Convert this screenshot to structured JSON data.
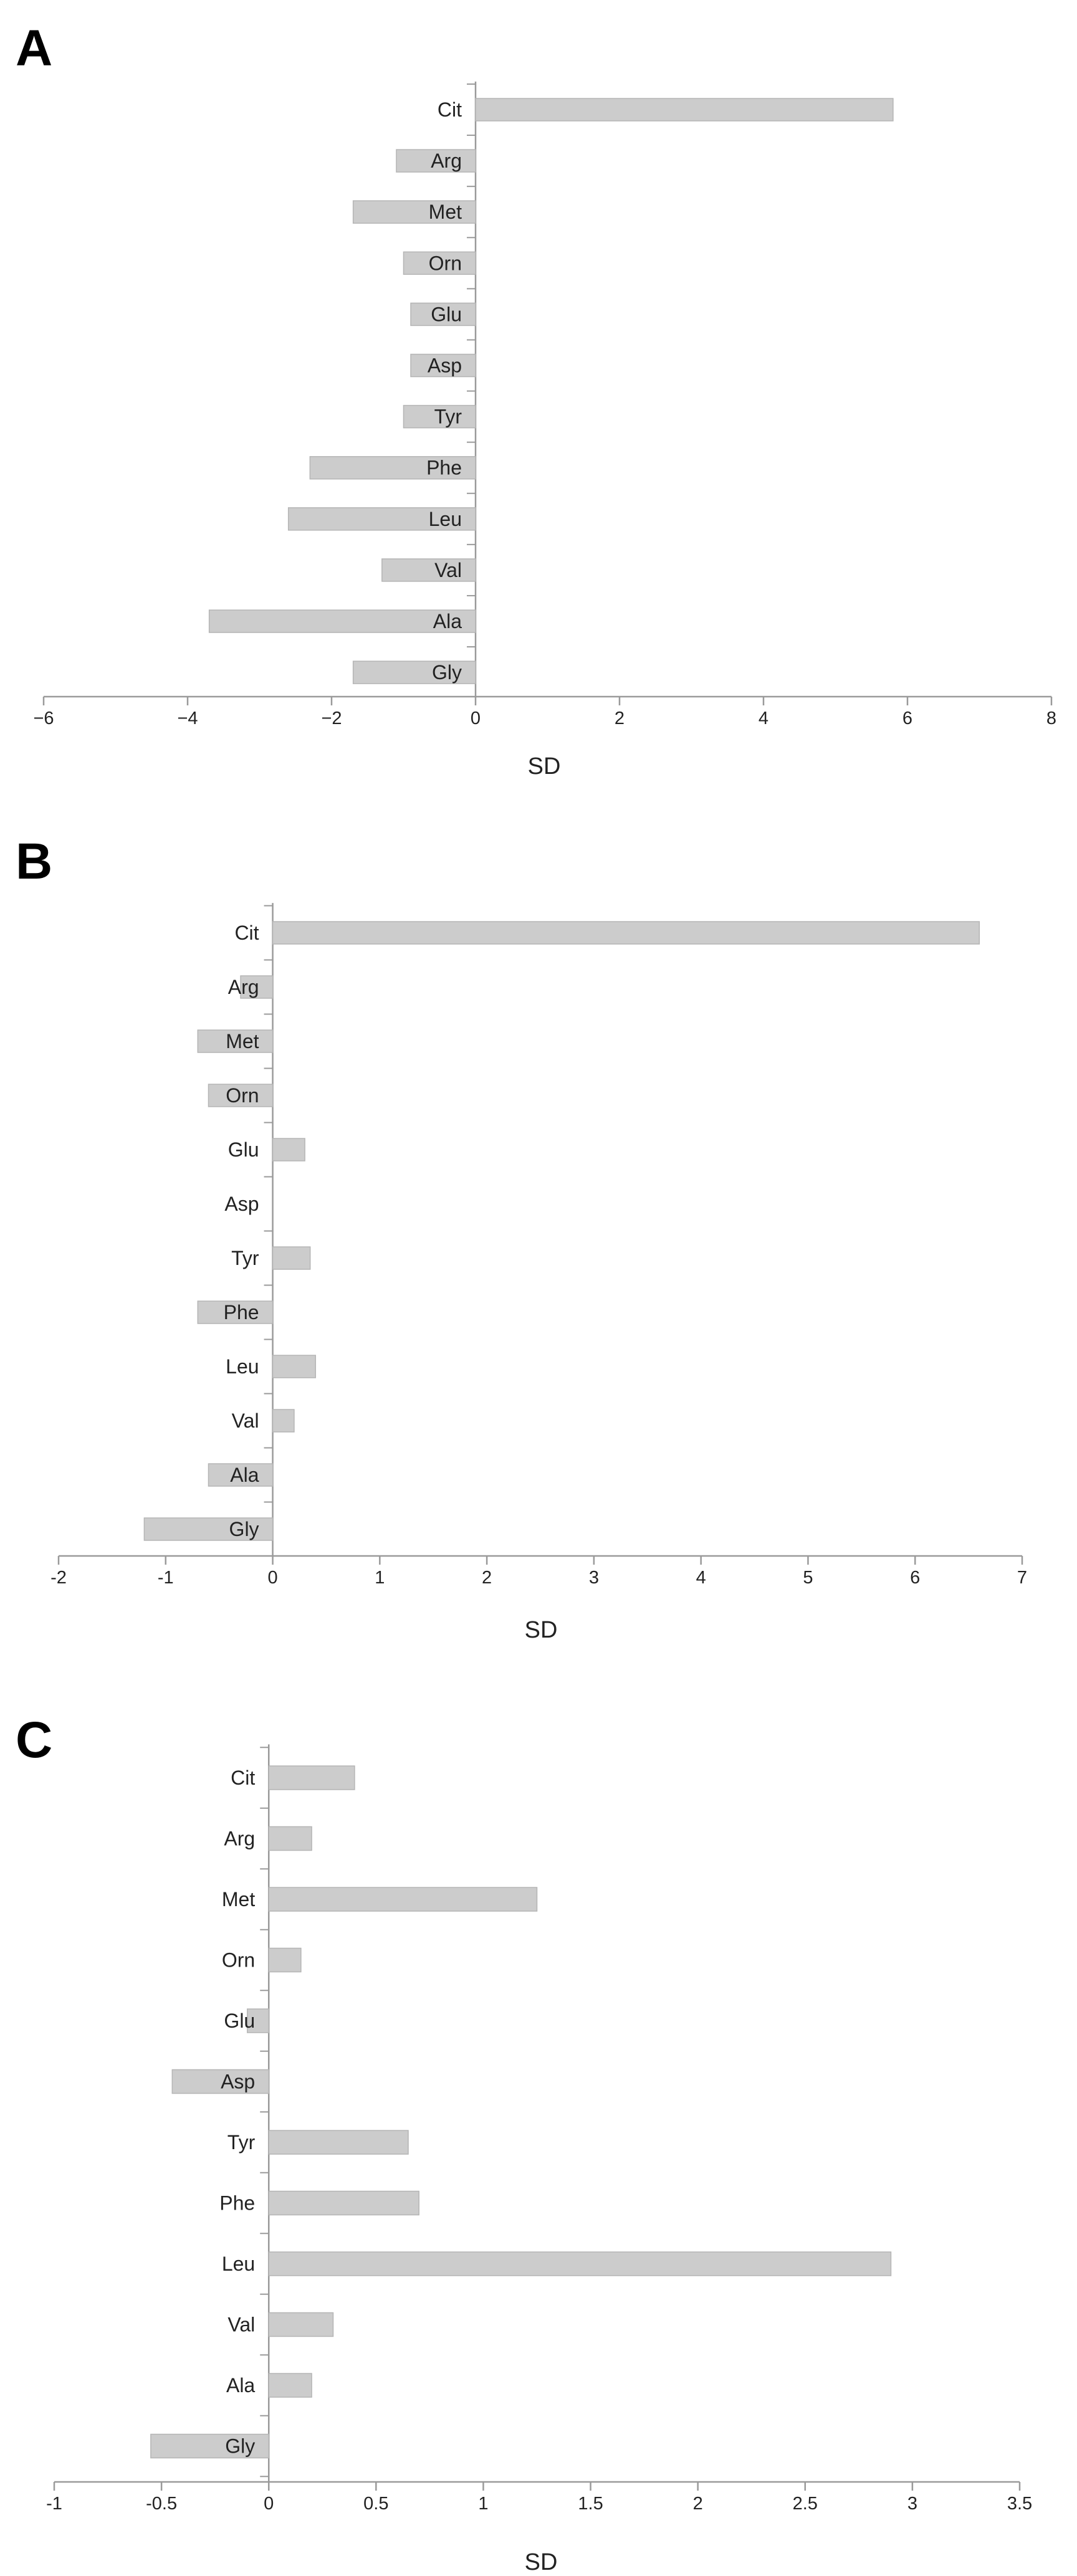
{
  "chart_data": [
    {
      "panel_label": "A",
      "type": "bar",
      "orientation": "horizontal",
      "categories": [
        "Cit",
        "Arg",
        "Met",
        "Orn",
        "Glu",
        "Asp",
        "Tyr",
        "Phe",
        "Leu",
        "Val",
        "Ala",
        "Gly"
      ],
      "values": [
        5.8,
        -1.1,
        -1.7,
        -1.0,
        -0.9,
        -0.9,
        -1.0,
        -2.3,
        -2.6,
        -1.3,
        -3.7,
        -1.7
      ],
      "xlabel": "SD",
      "xlim": [
        -6,
        8
      ],
      "xticks": [
        -6,
        -4,
        -2,
        0,
        2,
        4,
        6,
        8
      ],
      "xtick_labels": [
        "−6",
        "−4",
        "−2",
        "0",
        "2",
        "4",
        "6",
        "8"
      ],
      "bar_color": "#cccccc",
      "grid": false
    },
    {
      "panel_label": "B",
      "type": "bar",
      "orientation": "horizontal",
      "categories": [
        "Cit",
        "Arg",
        "Met",
        "Orn",
        "Glu",
        "Asp",
        "Tyr",
        "Phe",
        "Leu",
        "Val",
        "Ala",
        "Gly"
      ],
      "values": [
        6.6,
        -0.3,
        -0.7,
        -0.6,
        0.3,
        0.0,
        0.35,
        -0.7,
        0.4,
        0.2,
        -0.6,
        -1.2
      ],
      "xlabel": "SD",
      "xlim": [
        -2,
        7
      ],
      "xticks": [
        -2,
        -1,
        0,
        1,
        2,
        3,
        4,
        5,
        6,
        7
      ],
      "xtick_labels": [
        "-2",
        "-1",
        "0",
        "1",
        "2",
        "3",
        "4",
        "5",
        "6",
        "7"
      ],
      "bar_color": "#cccccc",
      "grid": false
    },
    {
      "panel_label": "C",
      "type": "bar",
      "orientation": "horizontal",
      "categories": [
        "Cit",
        "Arg",
        "Met",
        "Orn",
        "Glu",
        "Asp",
        "Tyr",
        "Phe",
        "Leu",
        "Val",
        "Ala",
        "Gly"
      ],
      "values": [
        0.4,
        0.2,
        1.25,
        0.15,
        -0.1,
        -0.45,
        0.65,
        0.7,
        2.9,
        0.3,
        0.2,
        -0.55
      ],
      "xlabel": "SD",
      "xlim": [
        -1,
        3.5
      ],
      "xticks": [
        -1,
        -0.5,
        0,
        0.5,
        1,
        1.5,
        2,
        2.5,
        3,
        3.5
      ],
      "xtick_labels": [
        "-1",
        "-0.5",
        "0",
        "0.5",
        "1",
        "1.5",
        "2",
        "2.5",
        "3",
        "3.5"
      ],
      "bar_color": "#cccccc",
      "grid": false
    }
  ]
}
